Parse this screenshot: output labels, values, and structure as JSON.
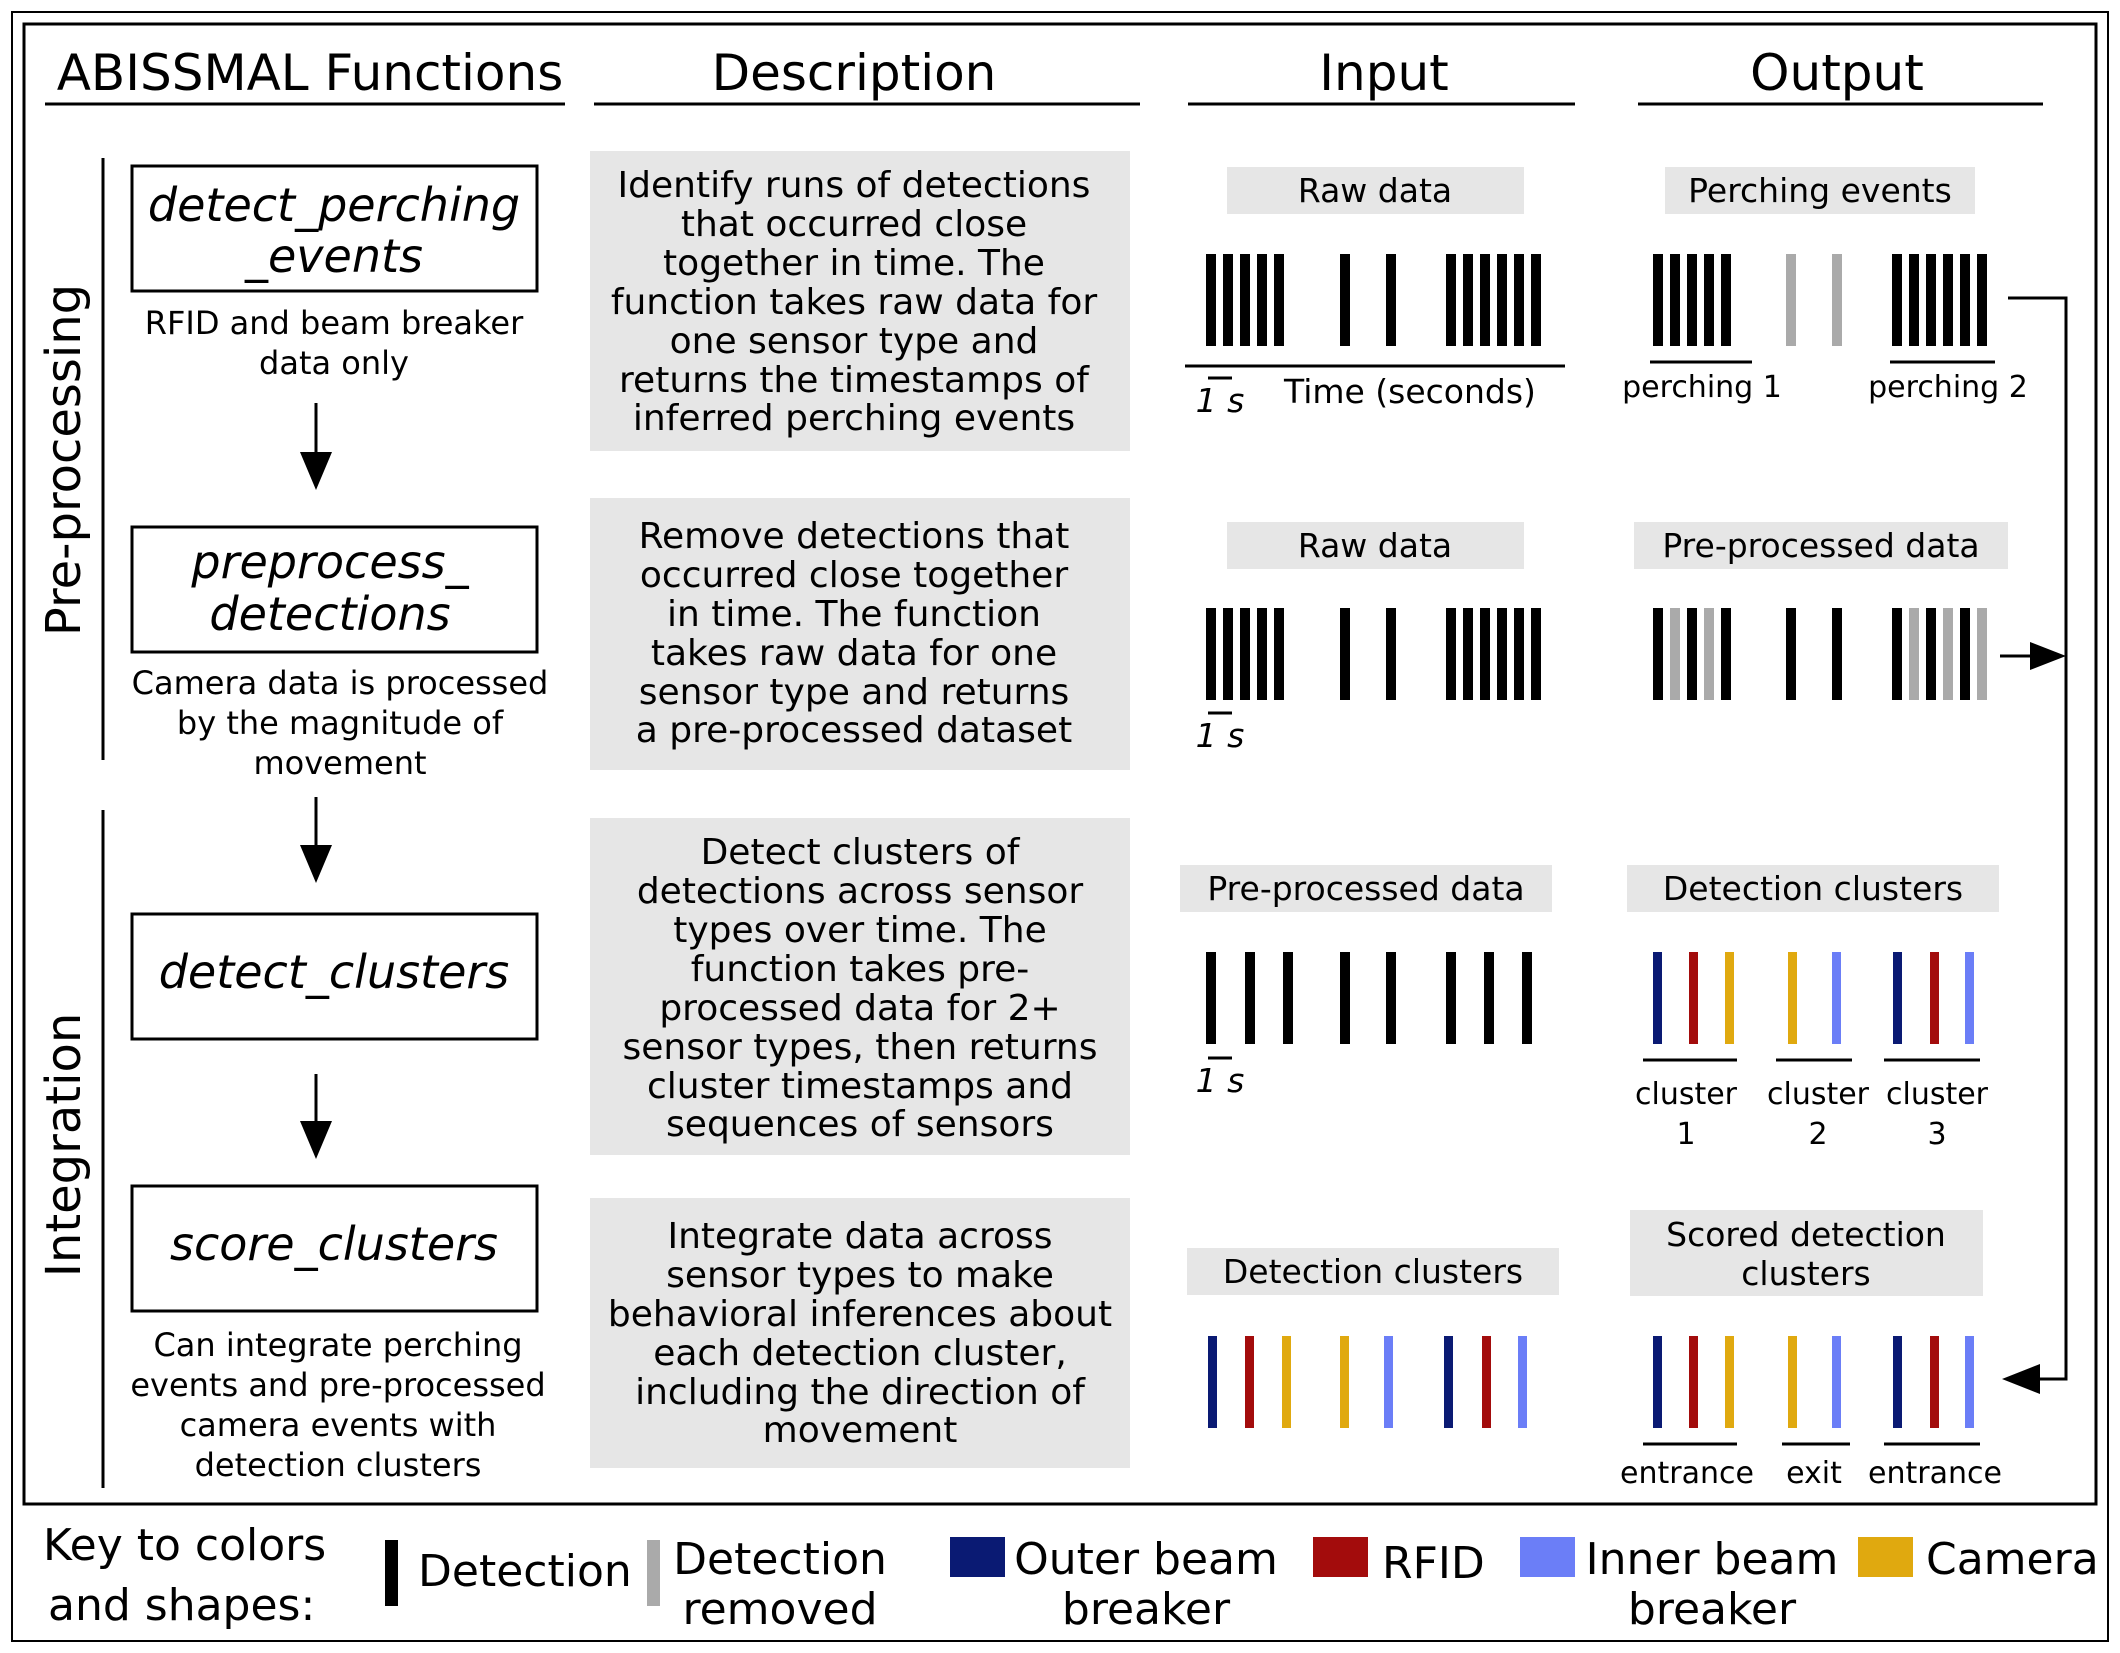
{
  "colors": {
    "detection": "#000000",
    "removed": "#aaaaaa",
    "outer_beam": "#0a1a73",
    "rfid": "#a30c0c",
    "inner_beam": "#6b7ef7",
    "camera": "#e0a90f",
    "box_fill": "#e6e6e6"
  },
  "headers": {
    "functions": "ABISSMAL Functions",
    "description": "Description",
    "input": "Input",
    "output": "Output"
  },
  "sections": {
    "preprocessing": "Pre-processing",
    "integration": "Integration"
  },
  "rows": [
    {
      "fn_lines": [
        "detect_perching",
        "_events"
      ],
      "note_lines": [
        "RFID and beam breaker",
        "data only"
      ],
      "desc_lines": [
        "Identify runs of detections",
        "that occurred close",
        "together in time. The",
        "function takes raw data for",
        "one sensor type and",
        "returns the timestamps of",
        "inferred perching events"
      ],
      "input_label": "Raw data",
      "output_label": "Perching events",
      "scale": "1 s",
      "axis_label": "Time (seconds)",
      "output_groups": [
        "perching 1",
        "perching 2"
      ]
    },
    {
      "fn_lines": [
        "preprocess_",
        "detections"
      ],
      "note_lines": [
        "Camera data is processed",
        "by the magnitude of",
        "movement"
      ],
      "desc_lines": [
        "Remove detections that",
        "occurred close together",
        "in time. The function",
        "takes raw data for one",
        "sensor type and returns",
        "a pre-processed dataset"
      ],
      "input_label": "Raw data",
      "output_label": "Pre-processed data",
      "scale": "1 s"
    },
    {
      "fn_lines": [
        "detect_clusters"
      ],
      "note_lines": [],
      "desc_lines": [
        "Detect clusters of",
        "detections across sensor",
        "types over time. The",
        "function takes pre-",
        "processed data for 2+",
        "sensor types, then returns",
        "cluster timestamps and",
        "sequences of sensors"
      ],
      "input_label": "Pre-processed data",
      "output_label": "Detection clusters",
      "scale": "1 s",
      "output_groups": [
        [
          "cluster",
          "1"
        ],
        [
          "cluster",
          "2"
        ],
        [
          "cluster",
          "3"
        ]
      ]
    },
    {
      "fn_lines": [
        "score_clusters"
      ],
      "note_lines": [
        "Can integrate perching",
        "events and pre-processed",
        "camera events with",
        "detection clusters"
      ],
      "desc_lines": [
        "Integrate data across",
        "sensor types to make",
        "behavioral inferences about",
        "each detection cluster,",
        "including the direction of",
        "movement"
      ],
      "input_label": "Detection clusters",
      "output_label_lines": [
        "Scored detection",
        "clusters"
      ],
      "output_groups": [
        "entrance",
        "exit",
        "entrance"
      ]
    }
  ],
  "key": {
    "title_lines": [
      "Key to colors",
      "and shapes:"
    ],
    "items": [
      {
        "lines": [
          "Detection"
        ],
        "swatch": "detection"
      },
      {
        "lines": [
          "Detection",
          "removed"
        ],
        "swatch": "removed"
      },
      {
        "lines": [
          "Outer beam",
          "breaker"
        ],
        "swatch": "outer_beam"
      },
      {
        "lines": [
          "RFID"
        ],
        "swatch": "rfid"
      },
      {
        "lines": [
          "Inner beam",
          "breaker"
        ],
        "swatch": "inner_beam"
      },
      {
        "lines": [
          "Camera"
        ],
        "swatch": "camera"
      }
    ]
  }
}
